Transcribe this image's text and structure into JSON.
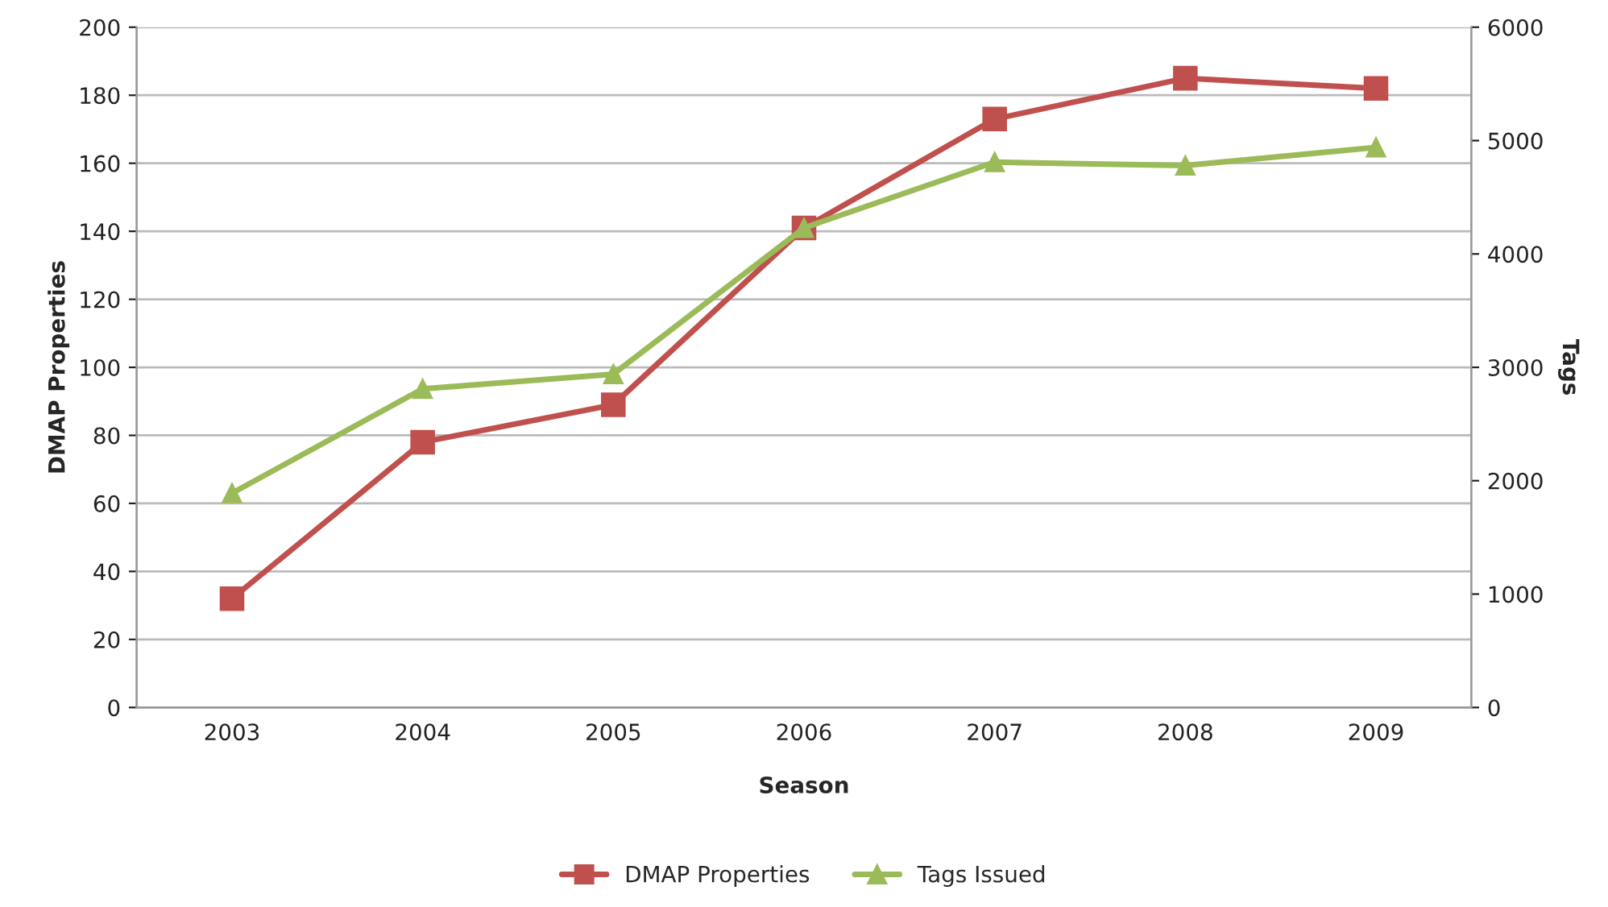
{
  "chart_data": {
    "type": "line",
    "xlabel": "Season",
    "ylabel": "DMAP Properties",
    "y2label": "Tags",
    "categories": [
      "2003",
      "2004",
      "2005",
      "2006",
      "2007",
      "2008",
      "2009"
    ],
    "series": [
      {
        "name": "DMAP Properties",
        "color": "#c0504d",
        "marker": "square",
        "values": [
          32,
          78,
          89,
          141,
          173,
          185,
          182
        ]
      },
      {
        "name": "Tags Issued",
        "color": "#9bbb59",
        "marker": "triangle",
        "axis": "y2",
        "values": [
          1890,
          2810,
          2940,
          4230,
          4810,
          4780,
          4940
        ]
      }
    ],
    "ylim": [
      0,
      200
    ],
    "yticks": [
      0,
      20,
      40,
      60,
      80,
      100,
      120,
      140,
      160,
      180,
      200
    ],
    "y2lim": [
      0,
      6000
    ],
    "y2ticks": [
      0,
      1000,
      2000,
      3000,
      4000,
      5000,
      6000
    ],
    "grid": "y",
    "legend": "bottom",
    "line_style": "solid"
  }
}
